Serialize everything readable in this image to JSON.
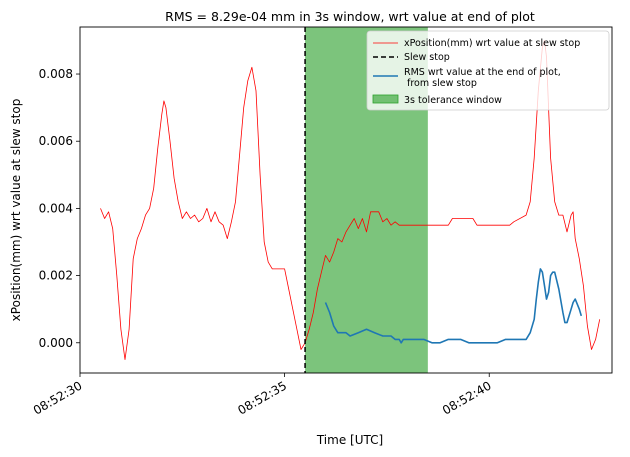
{
  "chart_data": {
    "type": "line",
    "title": "RMS = 8.29e-04 mm in 3s window, wrt value at end of plot",
    "xlabel": "Time [UTC]",
    "ylabel": "xPosition(mm) wrt value at slew stop",
    "xlim": [
      "08:52:30.0",
      "08:52:43.0"
    ],
    "ylim": [
      -0.0009,
      0.0094
    ],
    "x_ticks": [
      "08:52:30",
      "08:52:35",
      "08:52:40"
    ],
    "y_ticks": [
      "0.000",
      "0.002",
      "0.004",
      "0.006",
      "0.008"
    ],
    "legend_position": "top-right",
    "slew_stop": "08:52:35.5",
    "tolerance_window": [
      "08:52:35.5",
      "08:52:38.5"
    ],
    "series": [
      {
        "name": "xPosition(mm) wrt value at slew stop",
        "style": "line",
        "color": "#ff0000",
        "points": [
          [
            "08:52:30.5",
            0.004
          ],
          [
            "08:52:30.6",
            0.0037
          ],
          [
            "08:52:30.7",
            0.0039
          ],
          [
            "08:52:30.8",
            0.0034
          ],
          [
            "08:52:30.9",
            0.002
          ],
          [
            "08:52:31.0",
            0.0004
          ],
          [
            "08:52:31.1",
            -0.0005
          ],
          [
            "08:52:31.2",
            0.0004
          ],
          [
            "08:52:31.3",
            0.0025
          ],
          [
            "08:52:31.4",
            0.0031
          ],
          [
            "08:52:31.5",
            0.0034
          ],
          [
            "08:52:31.6",
            0.0038
          ],
          [
            "08:52:31.7",
            0.004
          ],
          [
            "08:52:31.8",
            0.0046
          ],
          [
            "08:52:31.9",
            0.0058
          ],
          [
            "08:52:32.0",
            0.0068
          ],
          [
            "08:52:32.05",
            0.0072
          ],
          [
            "08:52:32.1",
            0.007
          ],
          [
            "08:52:32.2",
            0.006
          ],
          [
            "08:52:32.3",
            0.0049
          ],
          [
            "08:52:32.4",
            0.0042
          ],
          [
            "08:52:32.5",
            0.0037
          ],
          [
            "08:52:32.6",
            0.0039
          ],
          [
            "08:52:32.7",
            0.0037
          ],
          [
            "08:52:32.8",
            0.0038
          ],
          [
            "08:52:32.9",
            0.0036
          ],
          [
            "08:52:33.0",
            0.0037
          ],
          [
            "08:52:33.1",
            0.004
          ],
          [
            "08:52:33.2",
            0.0036
          ],
          [
            "08:52:33.3",
            0.0039
          ],
          [
            "08:52:33.4",
            0.0036
          ],
          [
            "08:52:33.5",
            0.0035
          ],
          [
            "08:52:33.6",
            0.0031
          ],
          [
            "08:52:33.7",
            0.0036
          ],
          [
            "08:52:33.8",
            0.0042
          ],
          [
            "08:52:33.9",
            0.0056
          ],
          [
            "08:52:34.0",
            0.007
          ],
          [
            "08:52:34.1",
            0.0078
          ],
          [
            "08:52:34.2",
            0.0082
          ],
          [
            "08:52:34.3",
            0.0075
          ],
          [
            "08:52:34.4",
            0.005
          ],
          [
            "08:52:34.5",
            0.003
          ],
          [
            "08:52:34.6",
            0.0024
          ],
          [
            "08:52:34.7",
            0.0022
          ],
          [
            "08:52:34.8",
            0.0022
          ],
          [
            "08:52:34.9",
            0.0022
          ],
          [
            "08:52:35.0",
            0.0022
          ],
          [
            "08:52:35.1",
            0.0016
          ],
          [
            "08:52:35.2",
            0.001
          ],
          [
            "08:52:35.3",
            0.0004
          ],
          [
            "08:52:35.4",
            -0.0002
          ],
          [
            "08:52:35.5",
            0.0
          ],
          [
            "08:52:35.6",
            0.0004
          ],
          [
            "08:52:35.7",
            0.0009
          ],
          [
            "08:52:35.8",
            0.0016
          ],
          [
            "08:52:35.9",
            0.0021
          ],
          [
            "08:52:36.0",
            0.0026
          ],
          [
            "08:52:36.1",
            0.0024
          ],
          [
            "08:52:36.2",
            0.0027
          ],
          [
            "08:52:36.3",
            0.0031
          ],
          [
            "08:52:36.4",
            0.003
          ],
          [
            "08:52:36.5",
            0.0033
          ],
          [
            "08:52:36.6",
            0.0035
          ],
          [
            "08:52:36.7",
            0.0037
          ],
          [
            "08:52:36.8",
            0.0034
          ],
          [
            "08:52:36.9",
            0.0037
          ],
          [
            "08:52:37.0",
            0.0033
          ],
          [
            "08:52:37.1",
            0.0039
          ],
          [
            "08:52:37.3",
            0.0039
          ],
          [
            "08:52:37.4",
            0.0036
          ],
          [
            "08:52:37.5",
            0.0037
          ],
          [
            "08:52:37.6",
            0.0035
          ],
          [
            "08:52:37.7",
            0.0036
          ],
          [
            "08:52:37.8",
            0.0035
          ],
          [
            "08:52:38.0",
            0.0035
          ],
          [
            "08:52:38.5",
            0.0035
          ],
          [
            "08:52:39.0",
            0.0035
          ],
          [
            "08:52:39.1",
            0.0037
          ],
          [
            "08:52:39.6",
            0.0037
          ],
          [
            "08:52:39.7",
            0.0035
          ],
          [
            "08:52:40.5",
            0.0035
          ],
          [
            "08:52:40.6",
            0.0036
          ],
          [
            "08:52:40.9",
            0.0038
          ],
          [
            "08:52:41.0",
            0.0042
          ],
          [
            "08:52:41.1",
            0.0055
          ],
          [
            "08:52:41.2",
            0.0075
          ],
          [
            "08:52:41.3",
            0.0088
          ],
          [
            "08:52:41.35",
            0.009
          ],
          [
            "08:52:41.4",
            0.0085
          ],
          [
            "08:52:41.5",
            0.0055
          ],
          [
            "08:52:41.6",
            0.0042
          ],
          [
            "08:52:41.7",
            0.0038
          ],
          [
            "08:52:41.8",
            0.0038
          ],
          [
            "08:52:41.9",
            0.0033
          ],
          [
            "08:52:42.0",
            0.0038
          ],
          [
            "08:52:42.05",
            0.0039
          ],
          [
            "08:52:42.1",
            0.0031
          ],
          [
            "08:52:42.2",
            0.0025
          ],
          [
            "08:52:42.3",
            0.0017
          ],
          [
            "08:52:42.4",
            0.0005
          ],
          [
            "08:52:42.5",
            -0.0002
          ],
          [
            "08:52:42.6",
            0.0001
          ],
          [
            "08:52:42.7",
            0.0007
          ]
        ]
      },
      {
        "name": "Slew stop",
        "style": "dashed-vertical",
        "color": "#000000"
      },
      {
        "name": "RMS wrt value at the end of plot,\n from slew stop",
        "style": "line",
        "color": "#1f77b4",
        "points": [
          [
            "08:52:36.0",
            0.0012
          ],
          [
            "08:52:36.1",
            0.0009
          ],
          [
            "08:52:36.2",
            0.0005
          ],
          [
            "08:52:36.3",
            0.0003
          ],
          [
            "08:52:36.5",
            0.0003
          ],
          [
            "08:52:36.6",
            0.0002
          ],
          [
            "08:52:36.8",
            0.0003
          ],
          [
            "08:52:37.0",
            0.0004
          ],
          [
            "08:52:37.2",
            0.0003
          ],
          [
            "08:52:37.4",
            0.0002
          ],
          [
            "08:52:37.6",
            0.0002
          ],
          [
            "08:52:37.7",
            0.0001
          ],
          [
            "08:52:37.8",
            0.0001
          ],
          [
            "08:52:37.85",
            0.0
          ],
          [
            "08:52:37.9",
            0.0001
          ],
          [
            "08:52:38.2",
            0.0001
          ],
          [
            "08:52:38.4",
            0.0001
          ],
          [
            "08:52:38.6",
            0.0
          ],
          [
            "08:52:38.8",
            0.0
          ],
          [
            "08:52:39.0",
            0.0001
          ],
          [
            "08:52:39.3",
            0.0001
          ],
          [
            "08:52:39.5",
            0.0
          ],
          [
            "08:52:39.8",
            0.0
          ],
          [
            "08:52:40.2",
            0.0
          ],
          [
            "08:52:40.4",
            0.0001
          ],
          [
            "08:52:40.7",
            0.0001
          ],
          [
            "08:52:40.9",
            0.0001
          ],
          [
            "08:52:41.0",
            0.0003
          ],
          [
            "08:52:41.1",
            0.0007
          ],
          [
            "08:52:41.15",
            0.0013
          ],
          [
            "08:52:41.2",
            0.0018
          ],
          [
            "08:52:41.25",
            0.0022
          ],
          [
            "08:52:41.3",
            0.0021
          ],
          [
            "08:52:41.35",
            0.0017
          ],
          [
            "08:52:41.4",
            0.0013
          ],
          [
            "08:52:41.45",
            0.0015
          ],
          [
            "08:52:41.5",
            0.002
          ],
          [
            "08:52:41.55",
            0.0021
          ],
          [
            "08:52:41.6",
            0.0021
          ],
          [
            "08:52:41.7",
            0.0016
          ],
          [
            "08:52:41.8",
            0.0009
          ],
          [
            "08:52:41.85",
            0.0006
          ],
          [
            "08:52:41.9",
            0.0006
          ],
          [
            "08:52:42.0",
            0.001
          ],
          [
            "08:52:42.05",
            0.0012
          ],
          [
            "08:52:42.1",
            0.0013
          ],
          [
            "08:52:42.2",
            0.001
          ],
          [
            "08:52:42.25",
            0.0008
          ]
        ]
      },
      {
        "name": "3s tolerance window",
        "style": "area",
        "color": "#2ca02c"
      }
    ]
  }
}
